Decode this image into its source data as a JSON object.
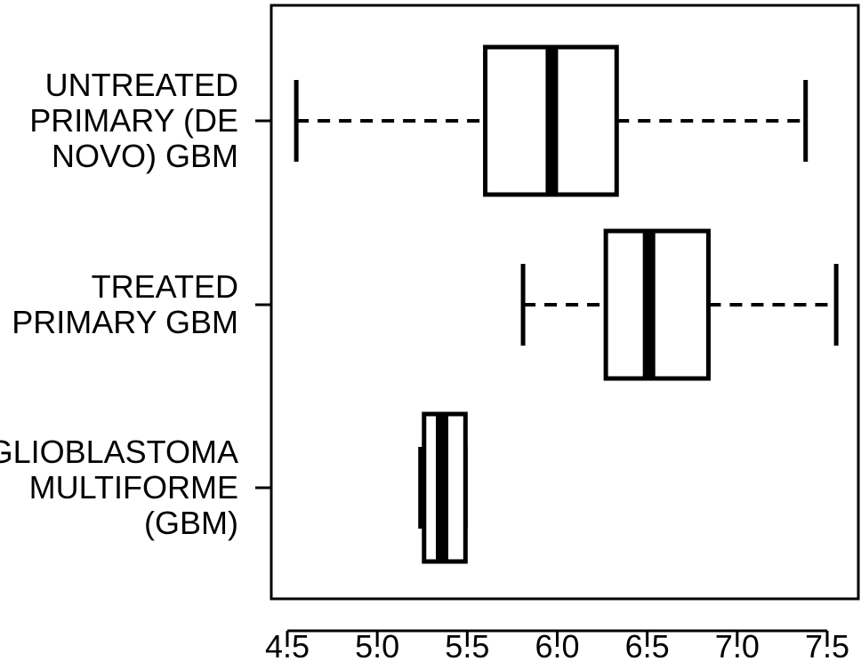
{
  "chart_data": {
    "type": "boxplot",
    "orientation": "horizontal",
    "title": "",
    "xlabel": "",
    "ylabel": "",
    "xlim": [
      4.45,
      7.6
    ],
    "xticks": [
      4.5,
      5.0,
      5.5,
      6.0,
      6.5,
      7.0,
      7.5
    ],
    "xtick_labels": [
      "4.5",
      "5.0",
      "5.5",
      "6.0",
      "6.5",
      "7.0",
      "7.5"
    ],
    "categories": [
      {
        "label_lines": [
          "UNTREATED",
          "PRIMARY (DE",
          "NOVO) GBM"
        ],
        "whisker_low": 4.55,
        "q1": 5.6,
        "median": 5.97,
        "q3": 6.33,
        "whisker_high": 7.38
      },
      {
        "label_lines": [
          "TREATED",
          "PRIMARY GBM"
        ],
        "whisker_low": 5.81,
        "q1": 6.27,
        "median": 6.51,
        "q3": 6.84,
        "whisker_high": 7.55
      },
      {
        "label_lines": [
          "GLIOBLASTOMA",
          "MULTIFORME",
          "(GBM)"
        ],
        "whisker_low": 5.24,
        "q1": 5.26,
        "median": 5.36,
        "q3": 5.49,
        "whisker_high": 5.49
      }
    ],
    "grid": false,
    "legend": "none",
    "colors": {
      "stroke": "#000000",
      "fill": "#ffffff"
    }
  }
}
